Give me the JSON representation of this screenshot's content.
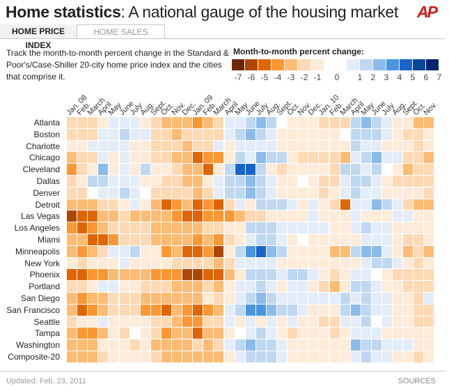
{
  "header": {
    "title_bold": "Home statistics",
    "title_rest": ": A national gauge of the housing market",
    "logo": "AP"
  },
  "tabs": [
    {
      "label": "HOME PRICE INDEX",
      "active": true
    },
    {
      "label": "HOME SALES",
      "active": false
    }
  ],
  "intro": "Track the month-to-month percent change in the Standard & Poor's/Case-Shiller 20-city home price index and the cities that comprise it.",
  "footer": {
    "updated": "Updated: Feb. 23, 2011",
    "sources": "SOURCES"
  },
  "chart_data": {
    "type": "heatmap",
    "title": "",
    "legend_title": "Month-to-month percent change:",
    "legend": {
      "negative_bins": [
        {
          "label": "-7",
          "color": "#6b2804"
        },
        {
          "label": "-6",
          "color": "#ad4703"
        },
        {
          "label": "-5",
          "color": "#e06505"
        },
        {
          "label": "-4",
          "color": "#fc9734"
        },
        {
          "label": "-3",
          "color": "#febb73"
        },
        {
          "label": "-2",
          "color": "#fed9b4"
        },
        {
          "label": "-1",
          "color": "#feebd8"
        }
      ],
      "zero": {
        "label": "0",
        "color": "#ffffff"
      },
      "positive_bins": [
        {
          "label": "1",
          "color": "#e3edf9"
        },
        {
          "label": "2",
          "color": "#bfd8f2"
        },
        {
          "label": "3",
          "color": "#8bbbea"
        },
        {
          "label": "4",
          "color": "#4a95e0"
        },
        {
          "label": "5",
          "color": "#1a63c8"
        },
        {
          "label": "6",
          "color": "#0a4696"
        },
        {
          "label": "7",
          "color": "#08246a"
        }
      ]
    },
    "value_units": "legend bin (percent change; negative = orange, positive = blue, 0 = no change)",
    "x": [
      "Jan. 08",
      "Feb.",
      "March",
      "April",
      "May",
      "June",
      "July",
      "Aug.",
      "Sept.",
      "Oct.",
      "Nov.",
      "Dec.",
      "Jan. 09",
      "Feb.",
      "March",
      "April",
      "May",
      "June",
      "July",
      "Aug.",
      "Sept.",
      "Oct.",
      "Nov.",
      "Dec.",
      "Jan. 10",
      "Feb.",
      "March",
      "April",
      "May",
      "June",
      "July",
      "Aug.",
      "Sept.",
      "Oct.",
      "Nov."
    ],
    "y": [
      "Atlanta",
      "Boston",
      "Charlotte",
      "Chicago",
      "Cleveland",
      "Dallas",
      "Denver",
      "Detroit",
      "Las Vegas",
      "Los Angeles",
      "Miami",
      "Minneapolis",
      "New York",
      "Phoenix",
      "Portland",
      "San Diego",
      "San Francisco",
      "Seattle",
      "Tampa",
      "Washington",
      "Composite-20"
    ],
    "values": [
      [
        -2,
        -2,
        -2,
        -1,
        1,
        1,
        1,
        -1,
        -2,
        -3,
        -3,
        -3,
        -4,
        -3,
        -2,
        1,
        1,
        2,
        3,
        2,
        0,
        -1,
        -1,
        -1,
        -2,
        -2,
        -2,
        2,
        3,
        2,
        1,
        -1,
        -1,
        -3,
        -3
      ],
      [
        -2,
        -2,
        -2,
        1,
        1,
        2,
        1,
        1,
        -2,
        -2,
        -3,
        -2,
        -2,
        -2,
        -2,
        1,
        2,
        3,
        2,
        1,
        -1,
        -1,
        -1,
        -1,
        -1,
        -1,
        0,
        2,
        2,
        2,
        1,
        -1,
        -2,
        -2,
        -1
      ],
      [
        -1,
        -1,
        1,
        1,
        1,
        1,
        -1,
        -1,
        -2,
        -2,
        -2,
        -3,
        -2,
        -2,
        1,
        -1,
        1,
        1,
        1,
        1,
        -1,
        -1,
        -1,
        -1,
        -1,
        -1,
        -1,
        2,
        1,
        1,
        -1,
        -1,
        -1,
        -2,
        -1
      ],
      [
        -3,
        -2,
        -2,
        1,
        -1,
        1,
        -1,
        -1,
        -2,
        -2,
        -3,
        -3,
        -5,
        -4,
        -4,
        -1,
        2,
        1,
        3,
        2,
        2,
        -1,
        -2,
        -2,
        -2,
        -2,
        -3,
        1,
        2,
        3,
        1,
        1,
        -2,
        -2,
        -3
      ],
      [
        -4,
        -2,
        -1,
        3,
        -1,
        1,
        -1,
        2,
        -1,
        -1,
        -2,
        -3,
        -3,
        -5,
        -1,
        2,
        5,
        5,
        2,
        -1,
        -2,
        -1,
        -1,
        -1,
        -1,
        -2,
        2,
        2,
        1,
        2,
        0,
        -1,
        -3,
        -2,
        -2
      ],
      [
        -2,
        -1,
        2,
        2,
        1,
        1,
        1,
        -1,
        -1,
        -2,
        -2,
        -3,
        -3,
        -1,
        1,
        2,
        2,
        3,
        2,
        1,
        -1,
        -1,
        0,
        -1,
        -2,
        -2,
        1,
        2,
        2,
        1,
        -1,
        -2,
        -2,
        -2,
        -2
      ],
      [
        -2,
        -2,
        0,
        1,
        1,
        2,
        1,
        0,
        -2,
        -2,
        -2,
        -2,
        -3,
        -2,
        1,
        2,
        2,
        3,
        2,
        1,
        -1,
        -1,
        -1,
        -1,
        -2,
        -1,
        1,
        2,
        1,
        1,
        -1,
        -1,
        -1,
        -1,
        -2
      ],
      [
        -3,
        -3,
        -3,
        -2,
        -2,
        -1,
        1,
        -1,
        -3,
        -5,
        -4,
        -3,
        -5,
        -4,
        -5,
        -2,
        1,
        -1,
        2,
        2,
        2,
        1,
        -1,
        1,
        -1,
        -2,
        -5,
        1,
        1,
        3,
        2,
        1,
        -2,
        -3,
        -3
      ],
      [
        -6,
        -5,
        -5,
        -3,
        -3,
        -2,
        -3,
        -3,
        -3,
        -3,
        -4,
        -5,
        -5,
        -4,
        -4,
        -4,
        -3,
        -2,
        -2,
        -1,
        -1,
        -1,
        -1,
        1,
        -1,
        -1,
        -1,
        1,
        -1,
        -1,
        -1,
        1,
        1,
        -1,
        -1
      ],
      [
        -4,
        -5,
        -4,
        -3,
        -2,
        -2,
        -2,
        -2,
        -3,
        -3,
        -3,
        -3,
        -3,
        -2,
        -2,
        -1,
        -1,
        2,
        2,
        2,
        1,
        1,
        1,
        1,
        1,
        -1,
        -1,
        1,
        2,
        1,
        1,
        -1,
        -1,
        -1,
        -1
      ],
      [
        -3,
        -3,
        -5,
        -5,
        -4,
        -2,
        -2,
        -2,
        -3,
        -3,
        -3,
        -3,
        -4,
        -3,
        -4,
        -2,
        -1,
        1,
        2,
        2,
        1,
        -1,
        0,
        -1,
        -1,
        -1,
        -1,
        -1,
        1,
        1,
        1,
        -1,
        -2,
        -2,
        -1
      ],
      [
        -3,
        -4,
        -3,
        -2,
        1,
        1,
        2,
        -1,
        -1,
        -4,
        -3,
        -5,
        -5,
        -4,
        -6,
        -1,
        2,
        4,
        5,
        3,
        2,
        -1,
        -1,
        -1,
        -1,
        -3,
        -3,
        2,
        3,
        3,
        1,
        -1,
        -3,
        -2,
        -3
      ],
      [
        -1,
        -2,
        -1,
        -1,
        -1,
        1,
        -1,
        -1,
        -1,
        -1,
        -2,
        -2,
        -2,
        -2,
        -3,
        -2,
        1,
        1,
        1,
        1,
        -1,
        -1,
        -1,
        -1,
        -1,
        -1,
        -1,
        -1,
        1,
        2,
        2,
        1,
        -1,
        -2,
        -1
      ],
      [
        -5,
        -5,
        -4,
        -4,
        -3,
        -3,
        -3,
        -3,
        -4,
        -4,
        -4,
        -6,
        -6,
        -5,
        -5,
        -3,
        -1,
        2,
        2,
        2,
        1,
        2,
        2,
        1,
        -1,
        -2,
        -1,
        1,
        1,
        0,
        -1,
        -2,
        -2,
        -2,
        -2
      ],
      [
        -2,
        -2,
        -1,
        1,
        1,
        -1,
        -1,
        -2,
        -2,
        -2,
        -3,
        -3,
        -3,
        -2,
        -3,
        -1,
        1,
        1,
        2,
        1,
        -1,
        1,
        1,
        -1,
        -2,
        -3,
        -1,
        2,
        2,
        1,
        -1,
        -1,
        -2,
        -2,
        -2
      ],
      [
        -3,
        -4,
        -3,
        -3,
        -2,
        -2,
        -2,
        -3,
        -3,
        -3,
        -3,
        -3,
        -3,
        -1,
        -2,
        -1,
        1,
        2,
        3,
        2,
        1,
        1,
        1,
        1,
        1,
        1,
        2,
        1,
        2,
        1,
        1,
        -1,
        -1,
        -2,
        1
      ],
      [
        -3,
        -5,
        -4,
        -3,
        -2,
        -2,
        -2,
        -4,
        -4,
        -5,
        -3,
        -4,
        -5,
        -4,
        -3,
        1,
        2,
        4,
        4,
        3,
        2,
        2,
        1,
        -1,
        -1,
        -1,
        2,
        3,
        2,
        1,
        1,
        -1,
        -1,
        -2,
        -2
      ],
      [
        -2,
        -1,
        -1,
        1,
        -1,
        -1,
        -1,
        -1,
        -2,
        -2,
        -3,
        -4,
        -4,
        -2,
        -2,
        1,
        -1,
        1,
        -1,
        1,
        -1,
        1,
        -1,
        -1,
        -2,
        -2,
        1,
        1,
        2,
        0,
        1,
        -1,
        -1,
        -2,
        -2
      ],
      [
        -3,
        -4,
        -4,
        -3,
        -1,
        -2,
        0,
        -1,
        -2,
        -4,
        -3,
        -3,
        -5,
        -3,
        -3,
        -1,
        0,
        1,
        2,
        1,
        -1,
        -2,
        -1,
        -1,
        -1,
        -2,
        -1,
        1,
        1,
        1,
        -1,
        -1,
        -1,
        -1,
        -1
      ],
      [
        -3,
        -3,
        -3,
        -1,
        -1,
        -1,
        -2,
        -1,
        -3,
        -3,
        -3,
        -3,
        -2,
        -3,
        -2,
        1,
        2,
        3,
        2,
        2,
        1,
        -1,
        -1,
        -1,
        -1,
        -1,
        -1,
        3,
        2,
        2,
        1,
        1,
        1,
        -1,
        -1
      ],
      [
        -3,
        -3,
        -3,
        -2,
        -1,
        -1,
        -1,
        -1,
        -2,
        -3,
        -3,
        -3,
        -3,
        -3,
        -3,
        -1,
        1,
        2,
        2,
        2,
        1,
        -1,
        -1,
        -1,
        -1,
        -1,
        -1,
        1,
        2,
        1,
        1,
        -1,
        -1,
        -2,
        -1
      ]
    ]
  }
}
